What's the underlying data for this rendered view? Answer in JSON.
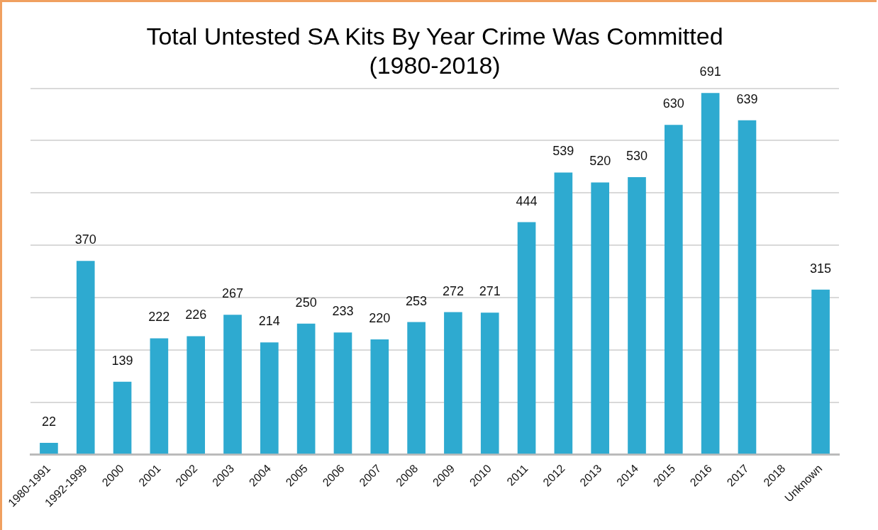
{
  "chart_data": {
    "type": "bar",
    "title": "Total Untested SA Kits By Year Crime Was Committed (1980-2018)",
    "categories": [
      "1980-1991",
      "1992-1999",
      "2000",
      "2001",
      "2002",
      "2003",
      "2004",
      "2005",
      "2006",
      "2007",
      "2008",
      "2009",
      "2010",
      "2011",
      "2012",
      "2013",
      "2014",
      "2015",
      "2016",
      "2017",
      "2018",
      "Unknown"
    ],
    "values": [
      22,
      370,
      139,
      222,
      226,
      267,
      214,
      250,
      233,
      220,
      253,
      272,
      271,
      444,
      539,
      520,
      530,
      630,
      691,
      639,
      null,
      315
    ],
    "color": "#2eaad0",
    "data_labels": true,
    "grid": "y",
    "tick_labels": "x",
    "ylim": [
      0,
      700
    ],
    "yticks": [
      {
        "value": 0,
        "label": null
      },
      {
        "value": 100,
        "label": null
      },
      {
        "value": 200,
        "label": null
      },
      {
        "value": 300,
        "label": null
      },
      {
        "value": 400,
        "label": null
      },
      {
        "value": 500,
        "label": null
      },
      {
        "value": 600,
        "label": null
      },
      {
        "value": 700,
        "label": null
      }
    ]
  }
}
